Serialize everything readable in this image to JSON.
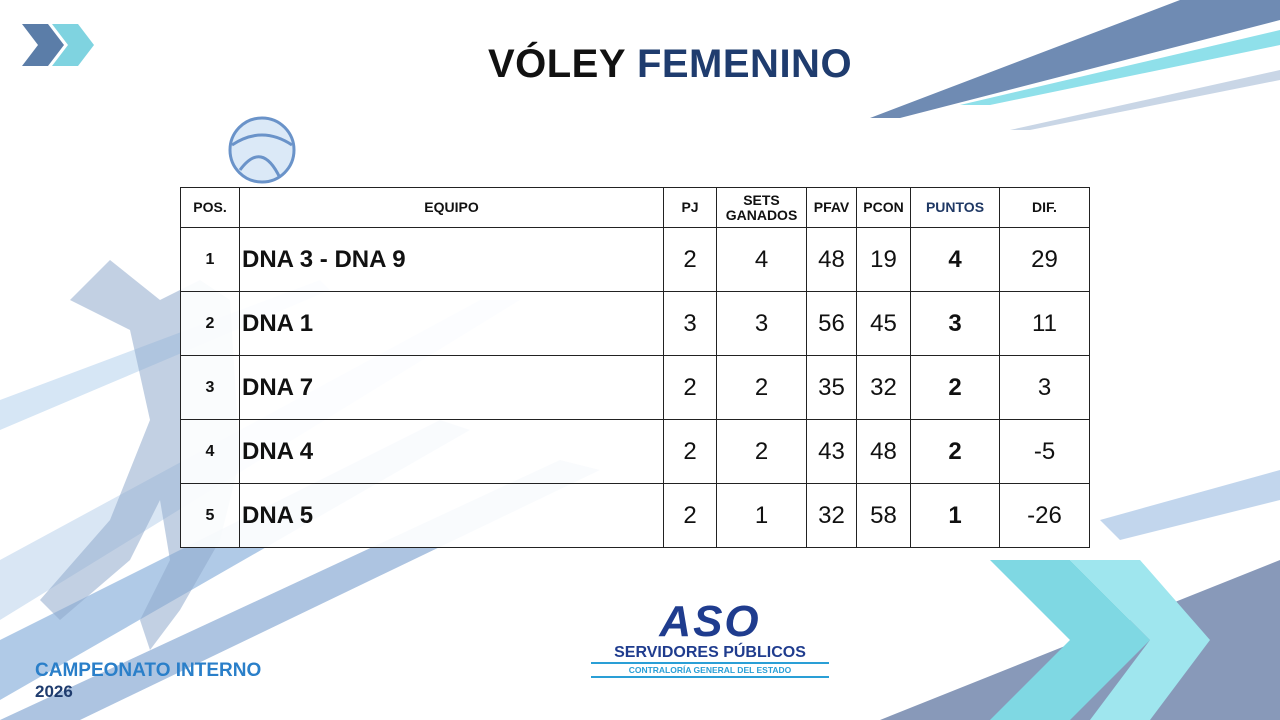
{
  "title": {
    "part1": "VÓLEY",
    "part2": "FEMENINO"
  },
  "table": {
    "headers": [
      "POS.",
      "EQUIPO",
      "PJ",
      "SETS GANADOS",
      "PFAV",
      "PCON",
      "PUNTOS",
      "DIF."
    ],
    "rows": [
      [
        1,
        "DNA 3 - DNA 9",
        2,
        4,
        48,
        19,
        4,
        29
      ],
      [
        2,
        "DNA 1",
        3,
        3,
        56,
        45,
        3,
        11
      ],
      [
        3,
        "DNA 7",
        2,
        2,
        35,
        32,
        2,
        3
      ],
      [
        4,
        "DNA 4",
        2,
        2,
        43,
        48,
        2,
        -5
      ],
      [
        5,
        "DNA 5",
        2,
        1,
        32,
        58,
        1,
        -26
      ]
    ]
  },
  "footer": {
    "event": "CAMPEONATO INTERNO",
    "year": "2026"
  },
  "logo": {
    "mark": "ASO",
    "name": "SERVIDORES PÚBLICOS",
    "org": "CONTRALORÍA GENERAL DEL ESTADO"
  }
}
